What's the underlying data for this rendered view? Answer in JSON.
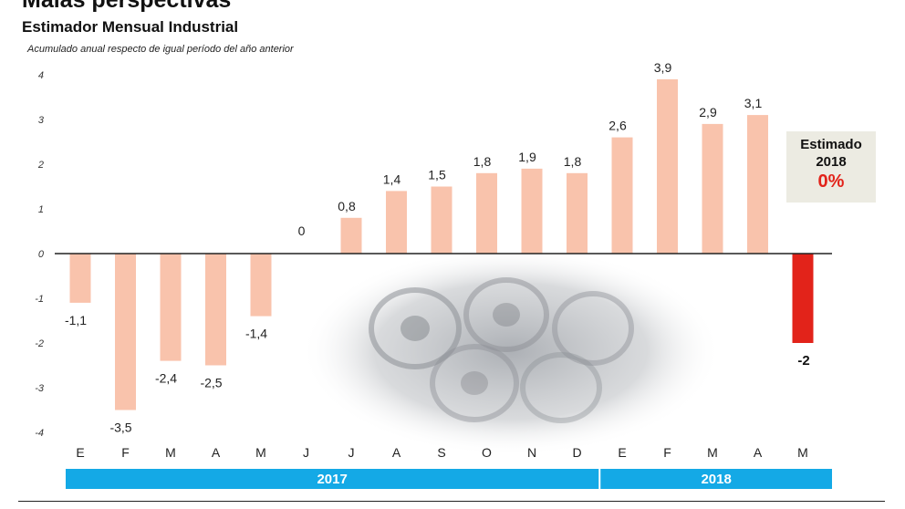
{
  "header": {
    "title": "Malas perspectivas",
    "subtitle": "Estimador Mensual Industrial",
    "note": "Acumulado anual respecto de igual período del año anterior"
  },
  "chart_data": {
    "type": "bar",
    "categories": [
      "E",
      "F",
      "M",
      "A",
      "M",
      "J",
      "J",
      "A",
      "S",
      "O",
      "N",
      "D",
      "E",
      "F",
      "M",
      "A",
      "M"
    ],
    "values": [
      -1.1,
      -3.5,
      -2.4,
      -2.5,
      -1.4,
      0,
      0.8,
      1.4,
      1.5,
      1.8,
      1.9,
      1.8,
      2.6,
      3.9,
      2.9,
      3.1,
      -2
    ],
    "value_labels": [
      "-1,1",
      "-3,5",
      "-2,4",
      "-2,5",
      "-1,4",
      "0",
      "0,8",
      "1,4",
      "1,5",
      "1,8",
      "1,9",
      "1,8",
      "2,6",
      "3,9",
      "2,9",
      "3,1",
      "-2"
    ],
    "y_ticks": [
      4,
      3,
      2,
      1,
      0,
      -1,
      -2,
      -3,
      -4
    ],
    "y_tick_labels": [
      "4",
      "3",
      "2",
      "1",
      "0",
      "-1",
      "-2",
      "-3",
      "-4"
    ],
    "ylim": [
      -4,
      4
    ],
    "grid": false,
    "years": [
      {
        "label": "2017",
        "from_index": 0,
        "to_index": 11
      },
      {
        "label": "2018",
        "from_index": 12,
        "to_index": 16
      }
    ],
    "highlight_index": 16,
    "colors": {
      "bar": "#f9c3ac",
      "highlight": "#e2231a",
      "year_band": "#14a9e6",
      "axis": "#222222"
    }
  },
  "estimate": {
    "label": "Estimado",
    "year": "2018",
    "value": "0%"
  }
}
